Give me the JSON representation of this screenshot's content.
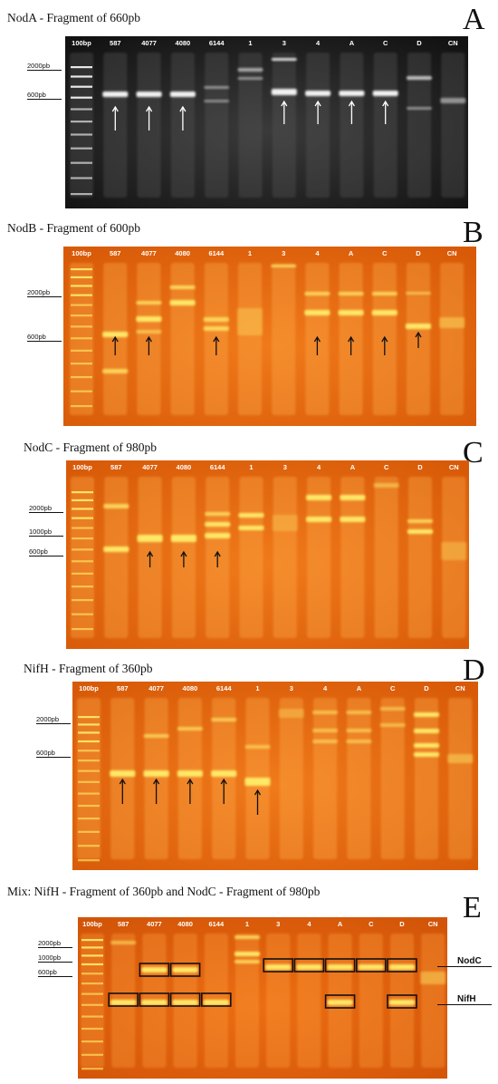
{
  "figure": {
    "lanes": [
      "100bp",
      "587",
      "4077",
      "4080",
      "6144",
      "1",
      "3",
      "4",
      "A",
      "C",
      "D",
      "CN"
    ],
    "panels": [
      {
        "letter": "A",
        "title": "NodA - Fragment of 660pb",
        "markers": [
          "2000pb",
          "600pb"
        ]
      },
      {
        "letter": "B",
        "title": "NodB - Fragment of 600pb",
        "markers": [
          "2000pb",
          "600pb"
        ]
      },
      {
        "letter": "C",
        "title": "NodC - Fragment of 980pb",
        "markers": [
          "2000pb",
          "1000pb",
          "600pb"
        ]
      },
      {
        "letter": "D",
        "title": "NifH - Fragment of 360pb",
        "markers": [
          "2000pb",
          "600pb"
        ]
      },
      {
        "letter": "E",
        "title": "Mix: NifH - Fragment of 360pb and NodC - Fragment of 980pb",
        "markers": [
          "2000pb",
          "1000pb",
          "600pb"
        ],
        "side_labels": [
          "NodC",
          "NifH"
        ]
      }
    ]
  },
  "colors": {
    "gel_a": "#1c1c1c",
    "gel_orange": "#e86a10",
    "band_white": "#f2f2f2",
    "band_yellow": "#ffe866"
  }
}
